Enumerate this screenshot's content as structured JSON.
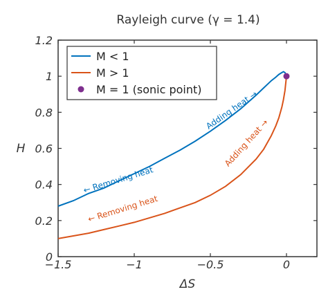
{
  "chart_data": {
    "type": "line",
    "title": "Rayleigh curve (γ = 1.4)",
    "xlabel": "ΔS",
    "ylabel": "H",
    "xlim": [
      -1.5,
      0.2
    ],
    "ylim": [
      0,
      1.2
    ],
    "xticks": [
      {
        "value": -1.5,
        "label": "−1.5"
      },
      {
        "value": -1,
        "label": "−1"
      },
      {
        "value": -0.5,
        "label": "−0.5"
      },
      {
        "value": 0,
        "label": "0"
      }
    ],
    "yticks": [
      {
        "value": 0,
        "label": "0"
      },
      {
        "value": 0.2,
        "label": "0.2"
      },
      {
        "value": 0.4,
        "label": "0.4"
      },
      {
        "value": 0.6,
        "label": "0.6"
      },
      {
        "value": 0.8,
        "label": "0.8"
      },
      {
        "value": 1.0,
        "label": "1"
      },
      {
        "value": 1.2,
        "label": "1.2"
      }
    ],
    "grid": false,
    "legend_position": "top-left",
    "series": [
      {
        "name": "M < 1",
        "color": "#0072bd",
        "x": [
          -1.5,
          -1.4,
          -1.3,
          -1.2,
          -1.1,
          -1.0,
          -0.9,
          -0.8,
          -0.7,
          -0.6,
          -0.5,
          -0.4,
          -0.3,
          -0.2,
          -0.15,
          -0.1,
          -0.07,
          -0.05,
          -0.03,
          -0.02,
          -0.01,
          0
        ],
        "y": [
          0.28,
          0.31,
          0.35,
          0.38,
          0.42,
          0.46,
          0.5,
          0.545,
          0.59,
          0.64,
          0.695,
          0.755,
          0.82,
          0.895,
          0.935,
          0.975,
          0.995,
          1.01,
          1.02,
          1.025,
          1.02,
          1.0
        ]
      },
      {
        "name": "M > 1",
        "color": "#d95319",
        "x": [
          -1.5,
          -1.4,
          -1.3,
          -1.2,
          -1.1,
          -1.0,
          -0.9,
          -0.8,
          -0.7,
          -0.6,
          -0.5,
          -0.4,
          -0.3,
          -0.2,
          -0.15,
          -0.1,
          -0.07,
          -0.05,
          -0.03,
          -0.02,
          -0.01,
          0
        ],
        "y": [
          0.1,
          0.115,
          0.13,
          0.15,
          0.17,
          0.19,
          0.215,
          0.24,
          0.27,
          0.3,
          0.34,
          0.39,
          0.455,
          0.54,
          0.595,
          0.67,
          0.725,
          0.77,
          0.83,
          0.87,
          0.92,
          1.0
        ]
      },
      {
        "name": "M = 1 (sonic point)",
        "type": "scatter",
        "color": "#7e2f8e",
        "x": [
          0
        ],
        "y": [
          1.0
        ]
      }
    ],
    "annotations": [
      {
        "text": "Adding heat →",
        "color": "#0072bd",
        "x": -0.35,
        "y": 0.8,
        "angle": -35
      },
      {
        "text": "← Removing heat",
        "color": "#0072bd",
        "x": -1.1,
        "y": 0.41,
        "angle": -17
      },
      {
        "text": "Adding heat →",
        "color": "#d95319",
        "x": -0.25,
        "y": 0.62,
        "angle": -48
      },
      {
        "text": "← Removing heat",
        "color": "#d95319",
        "x": -1.07,
        "y": 0.25,
        "angle": -17
      }
    ]
  }
}
